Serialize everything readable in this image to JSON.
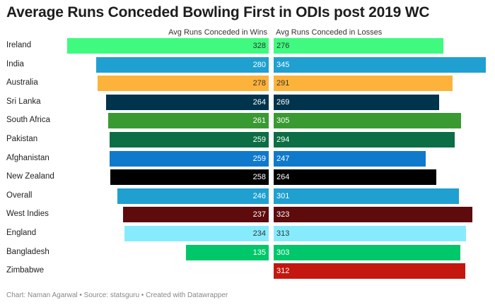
{
  "chart_data": {
    "type": "bar",
    "title": "Average Runs Conceded Bowling First in ODIs post 2019 WC",
    "categories": [
      "Ireland",
      "India",
      "Australia",
      "Sri Lanka",
      "South Africa",
      "Pakistan",
      "Afghanistan",
      "New Zealand",
      "Overall",
      "West Indies",
      "England",
      "Bangladesh",
      "Zimbabwe"
    ],
    "series": [
      {
        "name": "Avg Runs Conceded in Wins",
        "values": [
          328,
          280,
          278,
          264,
          261,
          259,
          259,
          258,
          246,
          237,
          234,
          135,
          null
        ]
      },
      {
        "name": "Avg Runs Conceded in Losses",
        "values": [
          276,
          345,
          291,
          269,
          305,
          294,
          247,
          264,
          301,
          323,
          313,
          303,
          312
        ]
      }
    ],
    "colors": [
      "#3ffa7f",
      "#1fa0d0",
      "#fdb33b",
      "#00344c",
      "#3a9a32",
      "#0b6e45",
      "#0f79cc",
      "#000000",
      "#1fa0d0",
      "#5e0b0e",
      "#86ecfd",
      "#00c76a",
      "#c4170f"
    ],
    "text_colors": [
      "dark",
      "light",
      "dark",
      "light",
      "light",
      "light",
      "light",
      "light",
      "light",
      "light",
      "dark",
      "light",
      "light"
    ]
  },
  "source": "Chart: Naman Agarwal • Source: statsguru • Created with Datawrapper"
}
